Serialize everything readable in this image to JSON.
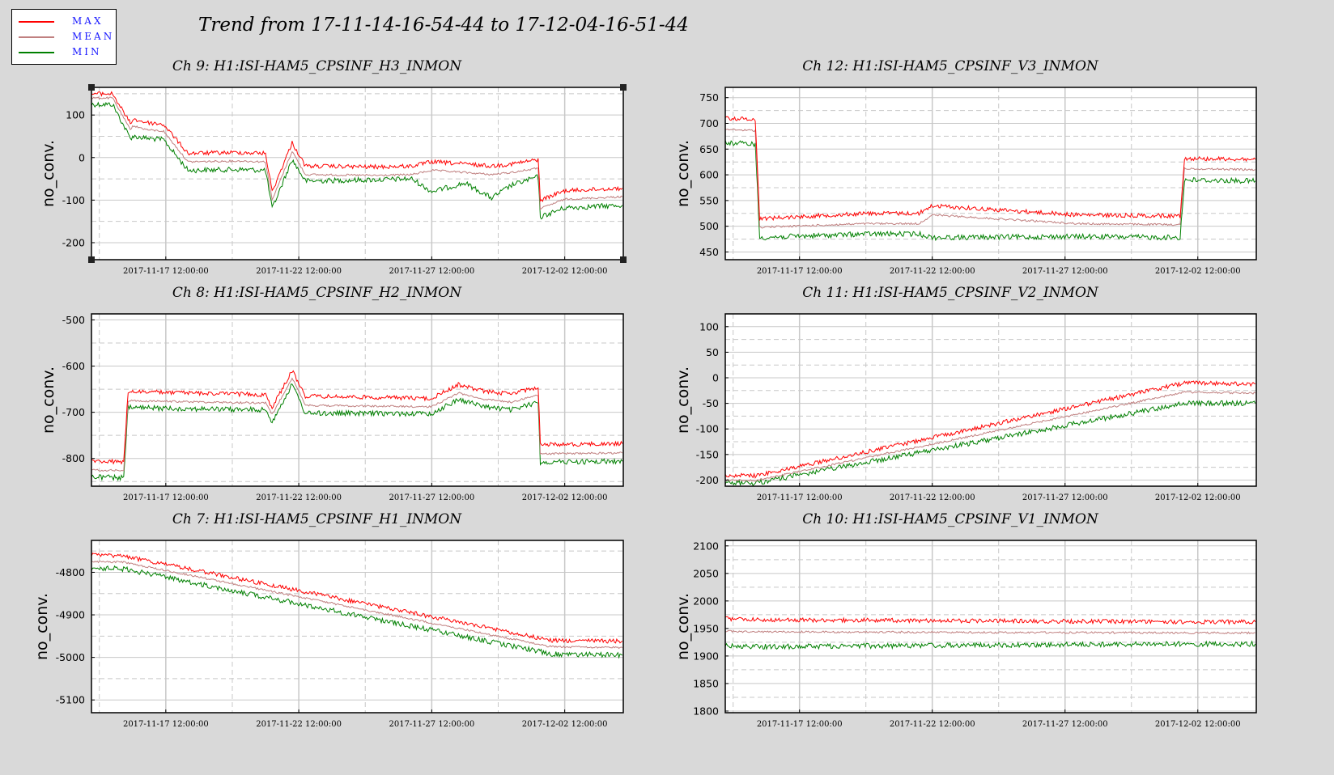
{
  "legend": {
    "items": [
      {
        "label": "MAX",
        "color": "#ff0000"
      },
      {
        "label": "MEAN",
        "color": "#c08080"
      },
      {
        "label": "MIN",
        "color": "#008000"
      }
    ]
  },
  "title": "Trend from 17-11-14-16-54-44 to 17-12-04-16-51-44",
  "colors": {
    "max": "#ff0000",
    "mean": "#c08080",
    "min": "#008000",
    "background": "#d9d9d9",
    "plot_bg": "#ffffff",
    "grid": "#c8c8c8"
  },
  "chart_data": [
    {
      "type": "line",
      "title": "Ch 9: H1:ISI-HAM5_CPSINF_H3_INMON",
      "ylabel": "no_conv.",
      "ylim": [
        -240,
        165
      ],
      "yticks": [
        100,
        0,
        -100,
        -200
      ],
      "ytick_labels": [
        "100",
        "0",
        "-100",
        "-200"
      ],
      "xlim": [
        "2017-11-14 16:54:44",
        "2017-12-04 16:51:44"
      ],
      "xticks": [
        "2017-11-17 12:00:00",
        "2017-11-22 12:00:00",
        "2017-11-27 12:00:00",
        "2017-12-02 12:00:00"
      ],
      "grid": true,
      "series": [
        {
          "name": "MAX",
          "x": [
            "2017-11-14 17:00",
            "2017-11-15 12:00",
            "2017-11-16 04:00",
            "2017-11-16 06:00",
            "2017-11-16 20:00",
            "2017-11-17 10:00",
            "2017-11-18 08:00",
            "2017-11-20 06:00",
            "2017-11-21 06:00",
            "2017-11-21 12:00",
            "2017-11-22 06:00",
            "2017-11-22 18:00",
            "2017-11-25 12:00",
            "2017-11-26 18:00",
            "2017-11-27 12:00",
            "2017-11-28 18:00",
            "2017-11-29 18:00",
            "2017-11-30 12:00",
            "2017-12-01 12:00",
            "2017-12-01 14:00",
            "2017-12-02 12:00",
            "2017-12-04 16:00"
          ],
          "values": [
            150,
            150,
            80,
            90,
            82,
            78,
            10,
            12,
            10,
            -80,
            35,
            -20,
            -22,
            -20,
            -10,
            -15,
            -20,
            -15,
            -5,
            -100,
            -78,
            -72
          ]
        },
        {
          "name": "MEAN",
          "x": [
            "2017-11-14 17:00",
            "2017-11-15 12:00",
            "2017-11-16 04:00",
            "2017-11-16 06:00",
            "2017-11-16 20:00",
            "2017-11-17 10:00",
            "2017-11-18 08:00",
            "2017-11-20 06:00",
            "2017-11-21 06:00",
            "2017-11-21 12:00",
            "2017-11-22 06:00",
            "2017-11-22 18:00",
            "2017-11-25 12:00",
            "2017-11-26 18:00",
            "2017-11-27 12:00",
            "2017-11-28 18:00",
            "2017-11-29 18:00",
            "2017-11-30 12:00",
            "2017-12-01 12:00",
            "2017-12-01 14:00",
            "2017-12-02 12:00",
            "2017-12-04 16:00"
          ],
          "values": [
            140,
            140,
            65,
            75,
            65,
            62,
            -10,
            -8,
            -10,
            -100,
            15,
            -40,
            -42,
            -40,
            -30,
            -35,
            -40,
            -35,
            -25,
            -120,
            -98,
            -92
          ]
        },
        {
          "name": "MIN",
          "x": [
            "2017-11-14 17:00",
            "2017-11-15 12:00",
            "2017-11-16 04:00",
            "2017-11-16 06:00",
            "2017-11-16 20:00",
            "2017-11-17 10:00",
            "2017-11-18 08:00",
            "2017-11-20 06:00",
            "2017-11-21 06:00",
            "2017-11-21 12:00",
            "2017-11-22 06:00",
            "2017-11-22 18:00",
            "2017-11-25 12:00",
            "2017-11-26 18:00",
            "2017-11-27 12:00",
            "2017-11-28 18:00",
            "2017-11-29 18:00",
            "2017-11-30 12:00",
            "2017-12-01 12:00",
            "2017-12-01 14:00",
            "2017-12-02 12:00",
            "2017-12-04 16:00"
          ],
          "values": [
            125,
            125,
            45,
            50,
            45,
            42,
            -30,
            -28,
            -30,
            -120,
            -5,
            -55,
            -52,
            -50,
            -80,
            -60,
            -95,
            -65,
            -45,
            -140,
            -118,
            -112
          ]
        }
      ]
    },
    {
      "type": "line",
      "title": "Ch 12: H1:ISI-HAM5_CPSINF_V3_INMON",
      "ylabel": "no_conv.",
      "ylim": [
        435,
        770
      ],
      "yticks": [
        750,
        700,
        650,
        600,
        550,
        500,
        450
      ],
      "ytick_labels": [
        "750",
        "700",
        "650",
        "600",
        "550",
        "500",
        "450"
      ],
      "xlim": [
        "2017-11-14 16:54:44",
        "2017-12-04 16:51:44"
      ],
      "xticks": [
        "2017-11-17 12:00:00",
        "2017-11-22 12:00:00",
        "2017-11-27 12:00:00",
        "2017-12-02 12:00:00"
      ],
      "grid": true,
      "series": [
        {
          "name": "MAX",
          "x": [
            "2017-11-14 17:00",
            "2017-11-15 20:00",
            "2017-11-16 00:00",
            "2017-11-20 00:00",
            "2017-11-22 00:00",
            "2017-11-22 12:00",
            "2017-11-28 00:00",
            "2017-12-01 20:00",
            "2017-12-02 00:00",
            "2017-12-04 16:00"
          ],
          "values": [
            710,
            708,
            515,
            525,
            525,
            540,
            522,
            520,
            632,
            630
          ]
        },
        {
          "name": "MEAN",
          "x": [
            "2017-11-14 17:00",
            "2017-11-15 20:00",
            "2017-11-16 00:00",
            "2017-11-20 00:00",
            "2017-11-22 00:00",
            "2017-11-22 12:00",
            "2017-11-28 00:00",
            "2017-12-01 20:00",
            "2017-12-02 00:00",
            "2017-12-04 16:00"
          ],
          "values": [
            688,
            686,
            498,
            505,
            505,
            522,
            505,
            503,
            612,
            610
          ]
        },
        {
          "name": "MIN",
          "x": [
            "2017-11-14 17:00",
            "2017-11-15 20:00",
            "2017-11-16 00:00",
            "2017-11-20 00:00",
            "2017-11-22 00:00",
            "2017-11-22 12:00",
            "2017-11-28 00:00",
            "2017-12-01 20:00",
            "2017-12-02 00:00",
            "2017-12-04 16:00"
          ],
          "values": [
            662,
            660,
            478,
            485,
            485,
            478,
            480,
            478,
            590,
            588
          ]
        }
      ]
    },
    {
      "type": "line",
      "title": "Ch 8: H1:ISI-HAM5_CPSINF_H2_INMON",
      "ylabel": "no_conv.",
      "ylim": [
        -860,
        -487
      ],
      "yticks": [
        -500,
        -600,
        -700,
        -800
      ],
      "ytick_labels": [
        "-500",
        "-600",
        "-700",
        "-800"
      ],
      "xlim": [
        "2017-11-14 16:54:44",
        "2017-12-04 16:51:44"
      ],
      "xticks": [
        "2017-11-17 12:00:00",
        "2017-11-22 12:00:00",
        "2017-11-27 12:00:00",
        "2017-12-02 12:00:00"
      ],
      "grid": true,
      "series": [
        {
          "name": "MAX",
          "x": [
            "2017-11-14 17:00",
            "2017-11-15 22:00",
            "2017-11-16 02:00",
            "2017-11-21 06:00",
            "2017-11-21 12:00",
            "2017-11-22 06:00",
            "2017-11-22 18:00",
            "2017-11-27 12:00",
            "2017-11-28 12:00",
            "2017-11-29 12:00",
            "2017-11-30 12:00",
            "2017-12-01 12:00",
            "2017-12-01 14:00",
            "2017-12-04 16:00"
          ],
          "values": [
            -805,
            -808,
            -655,
            -662,
            -690,
            -610,
            -665,
            -670,
            -640,
            -655,
            -660,
            -645,
            -770,
            -768
          ]
        },
        {
          "name": "MEAN",
          "x": [
            "2017-11-14 17:00",
            "2017-11-15 22:00",
            "2017-11-16 02:00",
            "2017-11-21 06:00",
            "2017-11-21 12:00",
            "2017-11-22 06:00",
            "2017-11-22 18:00",
            "2017-11-27 12:00",
            "2017-11-28 12:00",
            "2017-11-29 12:00",
            "2017-11-30 12:00",
            "2017-12-01 12:00",
            "2017-12-01 14:00",
            "2017-12-04 16:00"
          ],
          "values": [
            -825,
            -826,
            -675,
            -680,
            -705,
            -625,
            -685,
            -688,
            -658,
            -672,
            -678,
            -662,
            -790,
            -788
          ]
        },
        {
          "name": "MIN",
          "x": [
            "2017-11-14 17:00",
            "2017-11-15 22:00",
            "2017-11-16 02:00",
            "2017-11-21 06:00",
            "2017-11-21 12:00",
            "2017-11-22 06:00",
            "2017-11-22 18:00",
            "2017-11-27 12:00",
            "2017-11-28 12:00",
            "2017-11-29 12:00",
            "2017-11-30 12:00",
            "2017-12-01 12:00",
            "2017-12-01 14:00",
            "2017-12-04 16:00"
          ],
          "values": [
            -840,
            -842,
            -690,
            -695,
            -720,
            -640,
            -702,
            -703,
            -672,
            -688,
            -695,
            -678,
            -808,
            -806
          ]
        }
      ]
    },
    {
      "type": "line",
      "title": "Ch 11: H1:ISI-HAM5_CPSINF_V2_INMON",
      "ylabel": "no_conv.",
      "ylim": [
        -212,
        125
      ],
      "yticks": [
        100,
        50,
        0,
        -50,
        -100,
        -150,
        -200
      ],
      "ytick_labels": [
        "100",
        "50",
        "0",
        "-50",
        "-100",
        "-150",
        "-200"
      ],
      "xlim": [
        "2017-11-14 16:54:44",
        "2017-12-04 16:51:44"
      ],
      "xticks": [
        "2017-11-17 12:00:00",
        "2017-11-22 12:00:00",
        "2017-11-27 12:00:00",
        "2017-12-02 12:00:00"
      ],
      "grid": true,
      "series": [
        {
          "name": "MAX",
          "x": [
            "2017-11-14 17:00",
            "2017-11-15 20:00",
            "2017-12-02 00:00",
            "2017-12-04 16:00"
          ],
          "values": [
            -190,
            -192,
            -10,
            -12
          ]
        },
        {
          "name": "MEAN",
          "x": [
            "2017-11-14 17:00",
            "2017-11-15 20:00",
            "2017-12-02 00:00",
            "2017-12-04 16:00"
          ],
          "values": [
            -200,
            -201,
            -28,
            -30
          ]
        },
        {
          "name": "MIN",
          "x": [
            "2017-11-14 17:00",
            "2017-11-15 20:00",
            "2017-12-02 00:00",
            "2017-12-04 16:00"
          ],
          "values": [
            -205,
            -206,
            -50,
            -50
          ]
        }
      ]
    },
    {
      "type": "line",
      "title": "Ch 7: H1:ISI-HAM5_CPSINF_H1_INMON",
      "ylabel": "no_conv.",
      "ylim": [
        -5130,
        -4725
      ],
      "yticks": [
        -4800,
        -4900,
        -5000,
        -5100
      ],
      "ytick_labels": [
        "-4800",
        "-4900",
        "-5000",
        "-5100"
      ],
      "xlim": [
        "2017-11-14 16:54:44",
        "2017-12-04 16:51:44"
      ],
      "xticks": [
        "2017-11-17 12:00:00",
        "2017-11-22 12:00:00",
        "2017-11-27 12:00:00",
        "2017-12-02 12:00:00"
      ],
      "grid": true,
      "series": [
        {
          "name": "MAX",
          "x": [
            "2017-11-14 17:00",
            "2017-11-15 22:00",
            "2017-12-02 00:00",
            "2017-12-04 16:00"
          ],
          "values": [
            -4760,
            -4762,
            -4960,
            -4962
          ]
        },
        {
          "name": "MEAN",
          "x": [
            "2017-11-14 17:00",
            "2017-11-15 22:00",
            "2017-12-02 00:00",
            "2017-12-04 16:00"
          ],
          "values": [
            -4775,
            -4776,
            -4975,
            -4977
          ]
        },
        {
          "name": "MIN",
          "x": [
            "2017-11-14 17:00",
            "2017-11-15 22:00",
            "2017-12-02 00:00",
            "2017-12-04 16:00"
          ],
          "values": [
            -4790,
            -4792,
            -4992,
            -4995
          ]
        }
      ]
    },
    {
      "type": "line",
      "title": "Ch 10: H1:ISI-HAM5_CPSINF_V1_INMON",
      "ylabel": "no_conv.",
      "ylim": [
        1797,
        2110
      ],
      "yticks": [
        2100,
        2050,
        2000,
        1950,
        1900,
        1850,
        1800
      ],
      "ytick_labels": [
        "2100",
        "2050",
        "2000",
        "1950",
        "1900",
        "1850",
        "1800"
      ],
      "xlim": [
        "2017-11-14 16:54:44",
        "2017-12-04 16:51:44"
      ],
      "xticks": [
        "2017-11-17 12:00:00",
        "2017-11-22 12:00:00",
        "2017-11-27 12:00:00",
        "2017-12-02 12:00:00"
      ],
      "grid": true,
      "series": [
        {
          "name": "MAX",
          "x": [
            "2017-11-14 17:00",
            "2017-11-15 20:00",
            "2017-12-02 00:00",
            "2017-12-04 16:00"
          ],
          "values": [
            1968,
            1966,
            1962,
            1962
          ]
        },
        {
          "name": "MEAN",
          "x": [
            "2017-11-14 17:00",
            "2017-11-15 20:00",
            "2017-12-02 00:00",
            "2017-12-04 16:00"
          ],
          "values": [
            1945,
            1944,
            1942,
            1942
          ]
        },
        {
          "name": "MIN",
          "x": [
            "2017-11-14 17:00",
            "2017-11-15 20:00",
            "2017-12-02 00:00",
            "2017-12-04 16:00"
          ],
          "values": [
            1918,
            1917,
            1922,
            1922
          ]
        }
      ]
    }
  ]
}
